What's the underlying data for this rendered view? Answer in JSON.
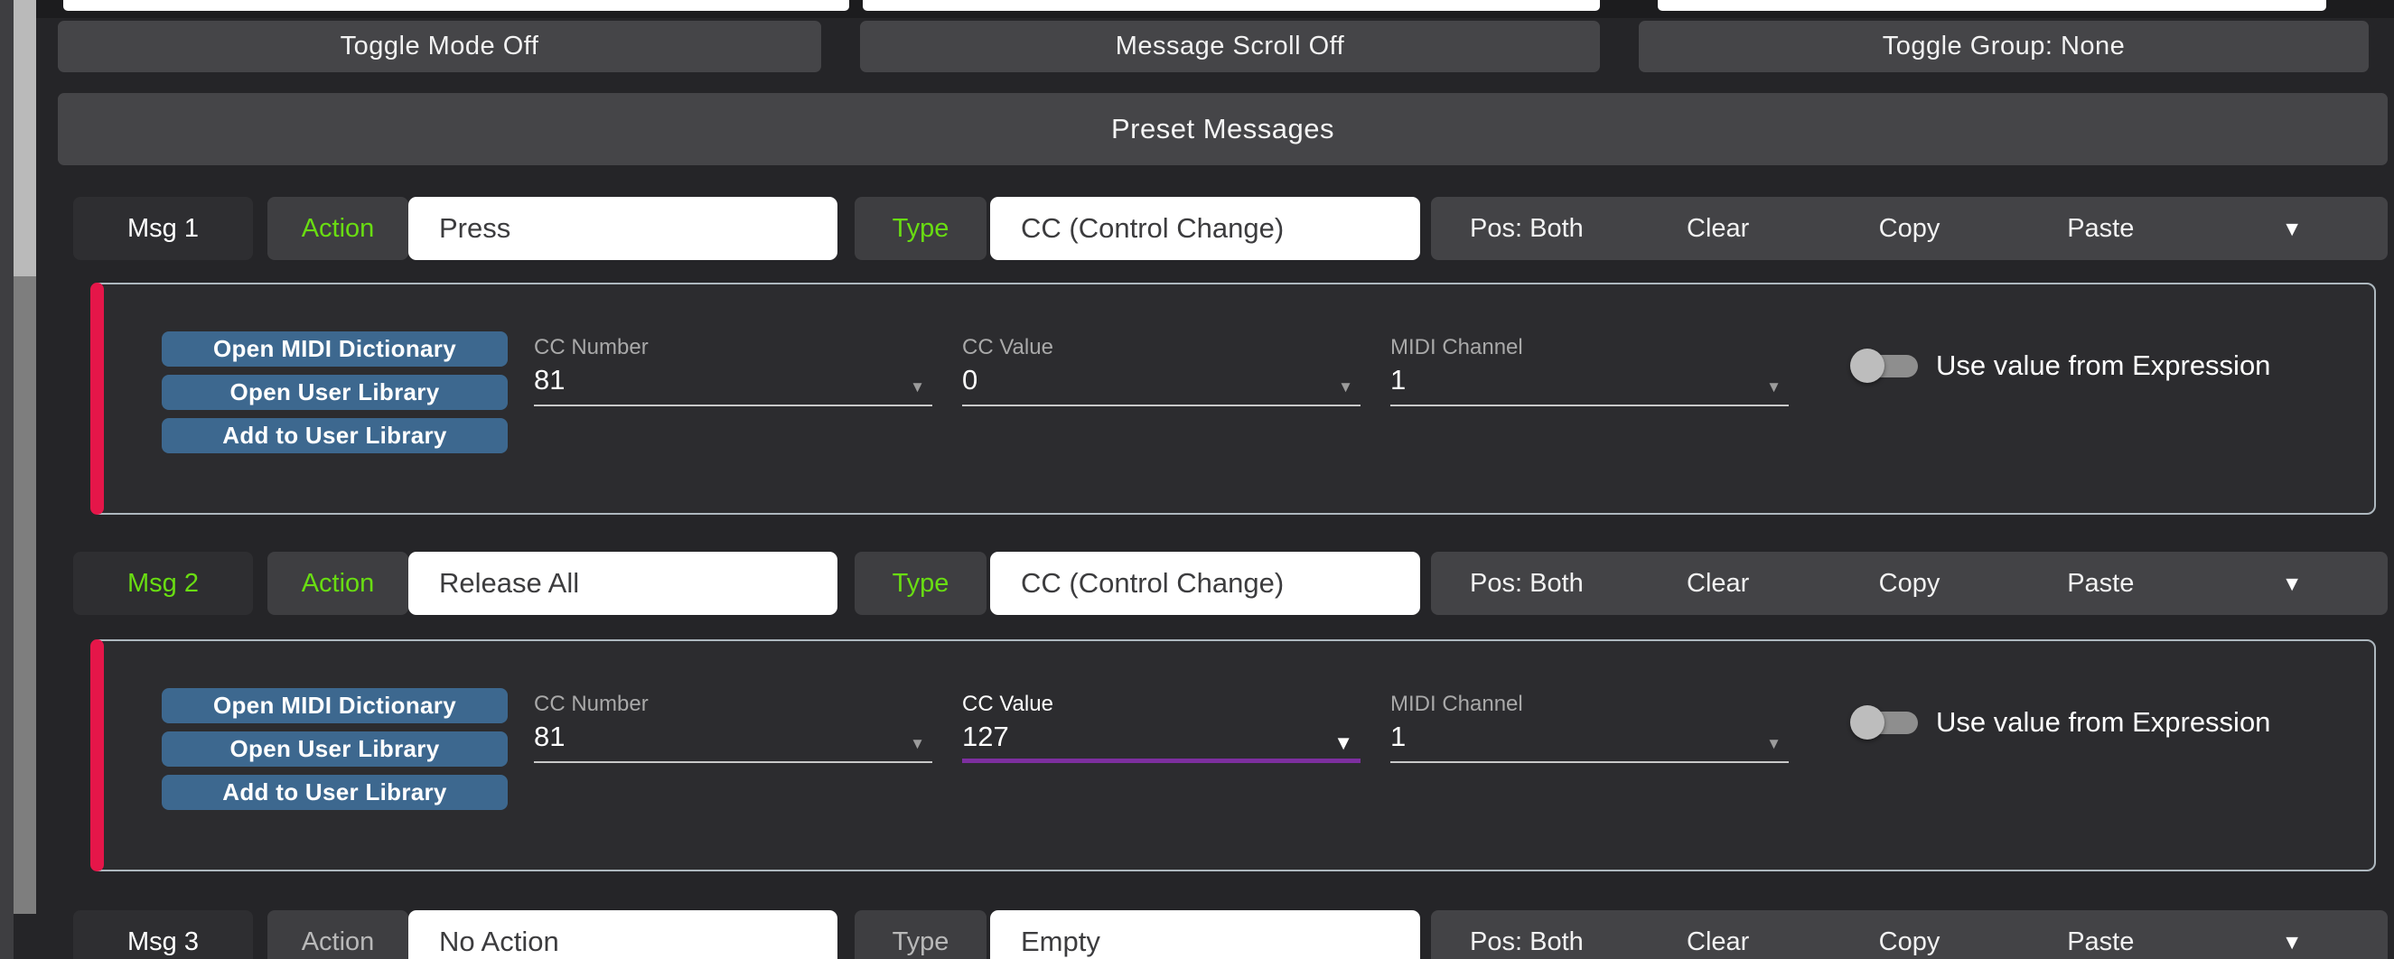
{
  "colors": {
    "accent_green": "#69dd12",
    "accent_red": "#e51649",
    "focus_purple": "#7d2f9f",
    "library_blue": "#3d688f",
    "panel_border": "#aeb8bf"
  },
  "icons": {
    "dropdown": "▼"
  },
  "top_bar": {
    "toggle_mode": "Toggle Mode Off",
    "message_scroll": "Message Scroll Off",
    "toggle_group": "Toggle Group: None"
  },
  "header": {
    "title": "Preset Messages"
  },
  "messages": [
    {
      "name": "Msg 1",
      "action_label": "Action",
      "action_value": "Press",
      "type_label": "Type",
      "type_value": "CC (Control Change)",
      "controls": {
        "pos": "Pos: Both",
        "clear": "Clear",
        "copy": "Copy",
        "paste": "Paste"
      },
      "detail": {
        "buttons": {
          "midi_dictionary": "Open MIDI Dictionary",
          "user_library": "Open User Library",
          "add_user_library": "Add to User Library"
        },
        "fields": [
          {
            "label": "CC Number",
            "value": "81"
          },
          {
            "label": "CC Value",
            "value": "0"
          },
          {
            "label": "MIDI Channel",
            "value": "1"
          }
        ],
        "expression_toggle_label": "Use value from Expression",
        "expression_toggle_state": "off"
      }
    },
    {
      "name": "Msg 2",
      "action_label": "Action",
      "action_value": "Release All",
      "type_label": "Type",
      "type_value": "CC (Control Change)",
      "controls": {
        "pos": "Pos: Both",
        "clear": "Clear",
        "copy": "Copy",
        "paste": "Paste"
      },
      "detail": {
        "buttons": {
          "midi_dictionary": "Open MIDI Dictionary",
          "user_library": "Open User Library",
          "add_user_library": "Add to User Library"
        },
        "fields": [
          {
            "label": "CC Number",
            "value": "81"
          },
          {
            "label": "CC Value",
            "value": "127",
            "focused": true
          },
          {
            "label": "MIDI Channel",
            "value": "1"
          }
        ],
        "expression_toggle_label": "Use value from Expression",
        "expression_toggle_state": "off"
      }
    },
    {
      "name": "Msg 3",
      "action_label": "Action",
      "action_value": "No Action",
      "type_label": "Type",
      "type_value": "Empty",
      "controls": {
        "pos": "Pos: Both",
        "clear": "Clear",
        "copy": "Copy",
        "paste": "Paste"
      }
    }
  ]
}
